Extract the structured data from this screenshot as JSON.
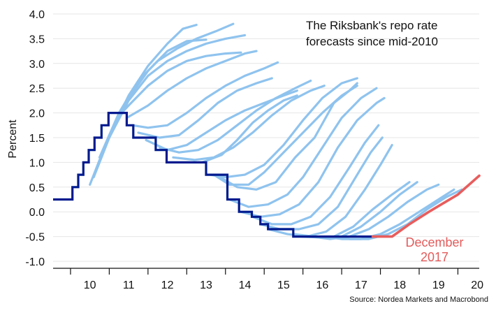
{
  "chart_data": {
    "type": "line",
    "title_lines": [
      "The Riksbank's repo rate",
      "forecasts since mid-2010"
    ],
    "ylabel": "Percent",
    "xlabel": "",
    "ylim": [
      -1.0,
      4.0
    ],
    "xlim": [
      9.55,
      20.55
    ],
    "yticks": [
      4.0,
      3.5,
      3.0,
      2.5,
      2.0,
      1.5,
      1.0,
      0.5,
      0.0,
      -0.5,
      -1.0
    ],
    "ytick_labels": [
      "4.0",
      "3.5",
      "3.0",
      "2.5",
      "2.0",
      "1.5",
      "1.0",
      "0.5",
      "0.0",
      "-0.5",
      "-1.0"
    ],
    "xtick_labels": [
      "10",
      "11",
      "12",
      "13",
      "14",
      "15",
      "16",
      "17",
      "18",
      "19",
      "20"
    ],
    "grid": "horizontal",
    "colors": {
      "forecast": "#8fc3ee",
      "actual": "#001a8e",
      "dec2017": "#e85d5d",
      "grid": "#e6e6e6"
    },
    "annotation": [
      "December",
      "2017"
    ],
    "source": "Source: Nordea Markets and Macrobond",
    "series": [
      {
        "key": "actual",
        "kind": "step",
        "points": [
          [
            9.55,
            0.25
          ],
          [
            10.05,
            0.25
          ],
          [
            10.05,
            0.5
          ],
          [
            10.2,
            0.5
          ],
          [
            10.2,
            0.75
          ],
          [
            10.33,
            0.75
          ],
          [
            10.33,
            1.0
          ],
          [
            10.47,
            1.0
          ],
          [
            10.47,
            1.25
          ],
          [
            10.62,
            1.25
          ],
          [
            10.62,
            1.5
          ],
          [
            10.8,
            1.5
          ],
          [
            10.8,
            1.75
          ],
          [
            10.98,
            1.75
          ],
          [
            10.98,
            2.0
          ],
          [
            11.45,
            2.0
          ],
          [
            11.45,
            1.75
          ],
          [
            11.62,
            1.75
          ],
          [
            11.62,
            1.5
          ],
          [
            12.2,
            1.5
          ],
          [
            12.2,
            1.25
          ],
          [
            12.48,
            1.25
          ],
          [
            12.48,
            1.0
          ],
          [
            13.5,
            1.0
          ],
          [
            13.5,
            0.75
          ],
          [
            14.05,
            0.75
          ],
          [
            14.05,
            0.25
          ],
          [
            14.35,
            0.25
          ],
          [
            14.35,
            0.0
          ],
          [
            14.68,
            0.0
          ],
          [
            14.68,
            -0.1
          ],
          [
            14.9,
            -0.1
          ],
          [
            14.9,
            -0.25
          ],
          [
            15.1,
            -0.25
          ],
          [
            15.1,
            -0.35
          ],
          [
            15.75,
            -0.35
          ],
          [
            15.75,
            -0.5
          ],
          [
            17.8,
            -0.5
          ]
        ]
      },
      {
        "key": "dec2017",
        "kind": "line",
        "points": [
          [
            17.8,
            -0.5
          ],
          [
            18.3,
            -0.5
          ],
          [
            18.75,
            -0.25
          ],
          [
            19.25,
            0.0
          ],
          [
            20.0,
            0.35
          ],
          [
            20.55,
            0.73
          ]
        ]
      },
      {
        "key": "forecast",
        "kind": "line",
        "points": [
          [
            10.5,
            0.55
          ],
          [
            11.0,
            1.55
          ],
          [
            11.5,
            2.35
          ],
          [
            12.0,
            2.95
          ],
          [
            12.5,
            3.4
          ],
          [
            12.9,
            3.7
          ],
          [
            13.25,
            3.78
          ]
        ]
      },
      {
        "key": "forecast",
        "kind": "line",
        "points": [
          [
            10.6,
            0.7
          ],
          [
            11.0,
            1.5
          ],
          [
            11.5,
            2.3
          ],
          [
            12.0,
            2.85
          ],
          [
            12.5,
            3.25
          ],
          [
            13.0,
            3.45
          ],
          [
            13.5,
            3.48
          ]
        ]
      },
      {
        "key": "forecast",
        "kind": "line",
        "points": [
          [
            10.75,
            1.1
          ],
          [
            11.25,
            2.0
          ],
          [
            11.75,
            2.65
          ],
          [
            12.25,
            3.05
          ],
          [
            12.75,
            3.3
          ],
          [
            13.25,
            3.5
          ],
          [
            13.75,
            3.65
          ],
          [
            14.2,
            3.8
          ]
        ]
      },
      {
        "key": "forecast",
        "kind": "line",
        "points": [
          [
            11.0,
            1.5
          ],
          [
            11.5,
            2.25
          ],
          [
            12.0,
            2.75
          ],
          [
            12.5,
            3.05
          ],
          [
            13.0,
            3.25
          ],
          [
            13.5,
            3.4
          ],
          [
            14.0,
            3.5
          ],
          [
            14.5,
            3.57
          ]
        ]
      },
      {
        "key": "forecast",
        "kind": "line",
        "points": [
          [
            11.2,
            1.9
          ],
          [
            11.5,
            2.15
          ],
          [
            12.0,
            2.55
          ],
          [
            12.5,
            2.85
          ],
          [
            13.0,
            3.05
          ],
          [
            13.5,
            3.15
          ],
          [
            14.0,
            3.2
          ],
          [
            14.4,
            3.22
          ]
        ]
      },
      {
        "key": "forecast",
        "kind": "line",
        "points": [
          [
            11.45,
            1.9
          ],
          [
            12.0,
            2.15
          ],
          [
            12.5,
            2.45
          ],
          [
            13.0,
            2.7
          ],
          [
            13.5,
            2.9
          ],
          [
            14.0,
            3.05
          ],
          [
            14.5,
            3.2
          ],
          [
            14.8,
            3.25
          ]
        ]
      },
      {
        "key": "forecast",
        "kind": "line",
        "points": [
          [
            11.6,
            1.75
          ],
          [
            12.0,
            1.7
          ],
          [
            12.5,
            1.75
          ],
          [
            13.0,
            2.0
          ],
          [
            13.5,
            2.3
          ],
          [
            14.0,
            2.55
          ],
          [
            14.5,
            2.75
          ],
          [
            15.0,
            2.9
          ],
          [
            15.35,
            3.02
          ]
        ]
      },
      {
        "key": "forecast",
        "kind": "line",
        "points": [
          [
            11.75,
            1.6
          ],
          [
            12.3,
            1.5
          ],
          [
            12.8,
            1.55
          ],
          [
            13.3,
            1.85
          ],
          [
            13.8,
            2.2
          ],
          [
            14.3,
            2.45
          ],
          [
            14.8,
            2.6
          ],
          [
            15.2,
            2.7
          ]
        ]
      },
      {
        "key": "forecast",
        "kind": "line",
        "points": [
          [
            11.95,
            1.45
          ],
          [
            12.5,
            1.25
          ],
          [
            13.0,
            1.35
          ],
          [
            13.5,
            1.6
          ],
          [
            14.0,
            1.85
          ],
          [
            14.5,
            2.05
          ],
          [
            15.0,
            2.2
          ],
          [
            15.5,
            2.35
          ],
          [
            15.85,
            2.45
          ]
        ]
      },
      {
        "key": "forecast",
        "kind": "line",
        "points": [
          [
            12.3,
            1.3
          ],
          [
            12.8,
            1.2
          ],
          [
            13.3,
            1.25
          ],
          [
            13.8,
            1.45
          ],
          [
            14.3,
            1.75
          ],
          [
            14.8,
            2.05
          ],
          [
            15.3,
            2.3
          ],
          [
            15.8,
            2.5
          ],
          [
            16.2,
            2.65
          ]
        ]
      },
      {
        "key": "forecast",
        "kind": "line",
        "points": [
          [
            12.65,
            1.1
          ],
          [
            13.2,
            1.05
          ],
          [
            13.7,
            1.1
          ],
          [
            14.2,
            1.3
          ],
          [
            14.7,
            1.6
          ],
          [
            15.2,
            1.95
          ],
          [
            15.7,
            2.25
          ],
          [
            16.2,
            2.45
          ],
          [
            16.55,
            2.55
          ]
        ]
      },
      {
        "key": "forecast",
        "kind": "line",
        "points": [
          [
            13.4,
            1.0
          ],
          [
            13.9,
            1.15
          ],
          [
            14.3,
            1.45
          ],
          [
            14.7,
            1.8
          ],
          [
            15.1,
            2.05
          ],
          [
            15.5,
            2.25
          ],
          [
            15.85,
            2.35
          ]
        ]
      },
      {
        "key": "forecast",
        "kind": "line",
        "points": [
          [
            13.6,
            0.75
          ],
          [
            14.0,
            0.7
          ],
          [
            14.5,
            0.75
          ],
          [
            15.0,
            0.95
          ],
          [
            15.5,
            1.35
          ],
          [
            16.0,
            1.85
          ],
          [
            16.5,
            2.3
          ],
          [
            17.0,
            2.6
          ],
          [
            17.4,
            2.7
          ]
        ]
      },
      {
        "key": "forecast",
        "kind": "line",
        "points": [
          [
            13.7,
            0.75
          ],
          [
            14.1,
            0.55
          ],
          [
            14.6,
            0.55
          ],
          [
            15.0,
            0.8
          ],
          [
            15.5,
            1.2
          ],
          [
            16.0,
            1.6
          ],
          [
            16.5,
            2.0
          ],
          [
            17.0,
            2.35
          ],
          [
            17.4,
            2.55
          ]
        ]
      },
      {
        "key": "forecast",
        "kind": "line",
        "points": [
          [
            13.75,
            0.75
          ],
          [
            14.3,
            0.5
          ],
          [
            14.8,
            0.45
          ],
          [
            15.3,
            0.6
          ],
          [
            15.8,
            1.1
          ],
          [
            16.3,
            1.5
          ],
          [
            16.8,
            2.2
          ],
          [
            17.2,
            2.45
          ],
          [
            17.4,
            2.6
          ]
        ]
      },
      {
        "key": "forecast",
        "kind": "line",
        "points": [
          [
            14.1,
            0.25
          ],
          [
            14.6,
            0.1
          ],
          [
            15.1,
            0.15
          ],
          [
            15.6,
            0.35
          ],
          [
            16.0,
            0.7
          ],
          [
            16.5,
            1.3
          ],
          [
            17.0,
            1.9
          ],
          [
            17.5,
            2.3
          ],
          [
            17.9,
            2.5
          ]
        ]
      },
      {
        "key": "forecast",
        "kind": "line",
        "points": [
          [
            14.4,
            0.0
          ],
          [
            14.9,
            -0.1
          ],
          [
            15.4,
            -0.05
          ],
          [
            15.9,
            0.15
          ],
          [
            16.4,
            0.6
          ],
          [
            16.9,
            1.3
          ],
          [
            17.4,
            1.85
          ],
          [
            17.9,
            2.2
          ],
          [
            18.1,
            2.3
          ]
        ]
      },
      {
        "key": "forecast",
        "kind": "line",
        "points": [
          [
            14.7,
            -0.1
          ],
          [
            15.2,
            -0.25
          ],
          [
            15.7,
            -0.25
          ],
          [
            16.2,
            -0.1
          ],
          [
            16.7,
            0.3
          ],
          [
            17.2,
            0.9
          ],
          [
            17.6,
            1.4
          ],
          [
            17.95,
            1.75
          ]
        ]
      },
      {
        "key": "forecast",
        "kind": "line",
        "points": [
          [
            14.9,
            -0.25
          ],
          [
            15.4,
            -0.35
          ],
          [
            15.9,
            -0.35
          ],
          [
            16.4,
            -0.25
          ],
          [
            16.9,
            0.1
          ],
          [
            17.4,
            0.75
          ],
          [
            17.75,
            1.2
          ],
          [
            18.05,
            1.5
          ]
        ]
      },
      {
        "key": "forecast",
        "kind": "line",
        "points": [
          [
            15.1,
            -0.35
          ],
          [
            15.6,
            -0.45
          ],
          [
            16.1,
            -0.5
          ],
          [
            16.6,
            -0.4
          ],
          [
            17.1,
            -0.1
          ],
          [
            17.6,
            0.45
          ],
          [
            18.0,
            0.95
          ],
          [
            18.3,
            1.35
          ]
        ]
      },
      {
        "key": "forecast",
        "kind": "line",
        "points": [
          [
            15.75,
            -0.45
          ],
          [
            16.3,
            -0.5
          ],
          [
            16.8,
            -0.5
          ],
          [
            17.3,
            -0.3
          ],
          [
            17.8,
            0.05
          ],
          [
            18.3,
            0.35
          ],
          [
            18.75,
            0.6
          ]
        ]
      },
      {
        "key": "forecast",
        "kind": "line",
        "points": [
          [
            15.95,
            -0.5
          ],
          [
            16.5,
            -0.52
          ],
          [
            17.0,
            -0.5
          ],
          [
            17.5,
            -0.3
          ],
          [
            18.0,
            0.0
          ],
          [
            18.5,
            0.35
          ],
          [
            18.95,
            0.6
          ]
        ]
      },
      {
        "key": "forecast",
        "kind": "line",
        "points": [
          [
            16.2,
            -0.5
          ],
          [
            16.7,
            -0.55
          ],
          [
            17.2,
            -0.5
          ],
          [
            17.7,
            -0.35
          ],
          [
            18.2,
            -0.1
          ],
          [
            18.7,
            0.2
          ],
          [
            19.2,
            0.45
          ],
          [
            19.5,
            0.55
          ]
        ]
      },
      {
        "key": "forecast",
        "kind": "line",
        "points": [
          [
            16.5,
            -0.5
          ],
          [
            17.0,
            -0.55
          ],
          [
            17.5,
            -0.55
          ],
          [
            18.0,
            -0.45
          ],
          [
            18.5,
            -0.25
          ],
          [
            19.0,
            0.0
          ],
          [
            19.5,
            0.25
          ],
          [
            19.9,
            0.45
          ]
        ]
      },
      {
        "key": "forecast",
        "kind": "line",
        "points": [
          [
            16.7,
            -0.5
          ],
          [
            17.2,
            -0.55
          ],
          [
            17.7,
            -0.55
          ],
          [
            18.2,
            -0.45
          ],
          [
            18.7,
            -0.25
          ],
          [
            19.2,
            0.05
          ],
          [
            19.7,
            0.3
          ],
          [
            20.1,
            0.45
          ]
        ]
      }
    ]
  }
}
